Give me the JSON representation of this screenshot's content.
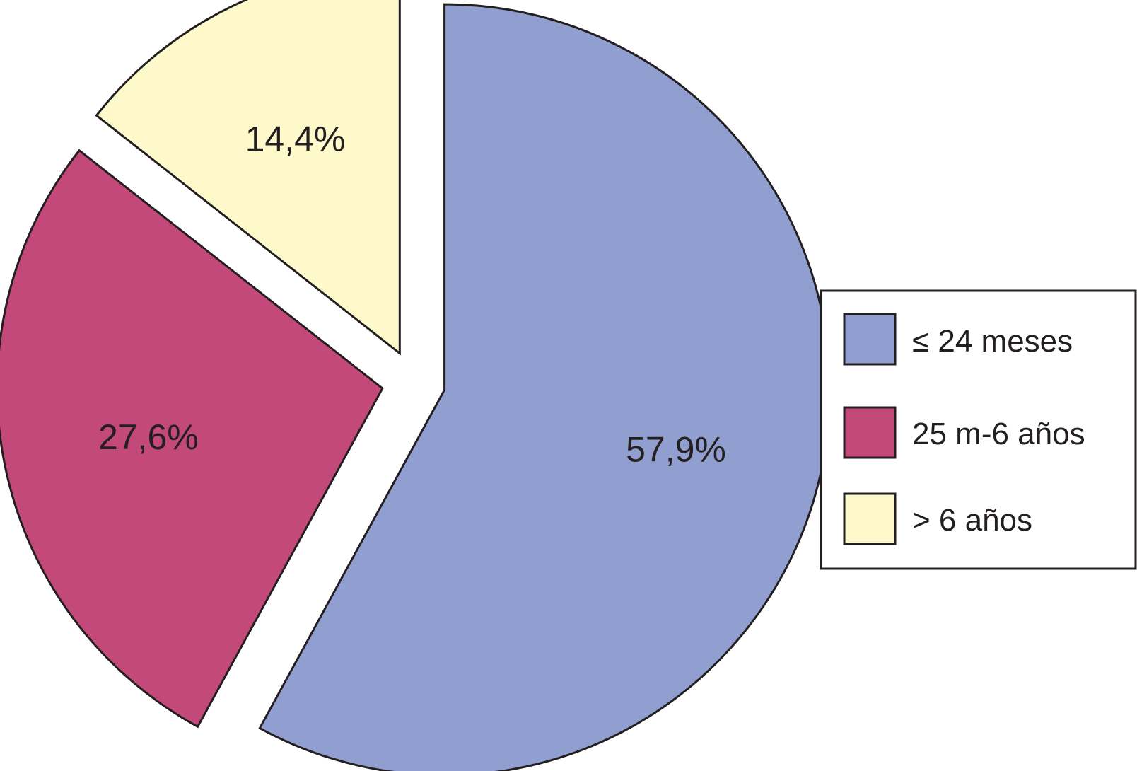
{
  "chart_data": {
    "type": "pie",
    "title": "",
    "values": [
      57.9,
      27.6,
      14.4
    ],
    "data_labels": [
      "57,9%",
      "27,6%",
      "14,4%"
    ],
    "legend_entries": [
      "≤ 24 meses",
      "25 m-6 años",
      "> 6 años"
    ],
    "colors": [
      "#919fd0",
      "#c3497a",
      "#fdf9cb"
    ],
    "exploded": true,
    "legend_placement": "right"
  }
}
